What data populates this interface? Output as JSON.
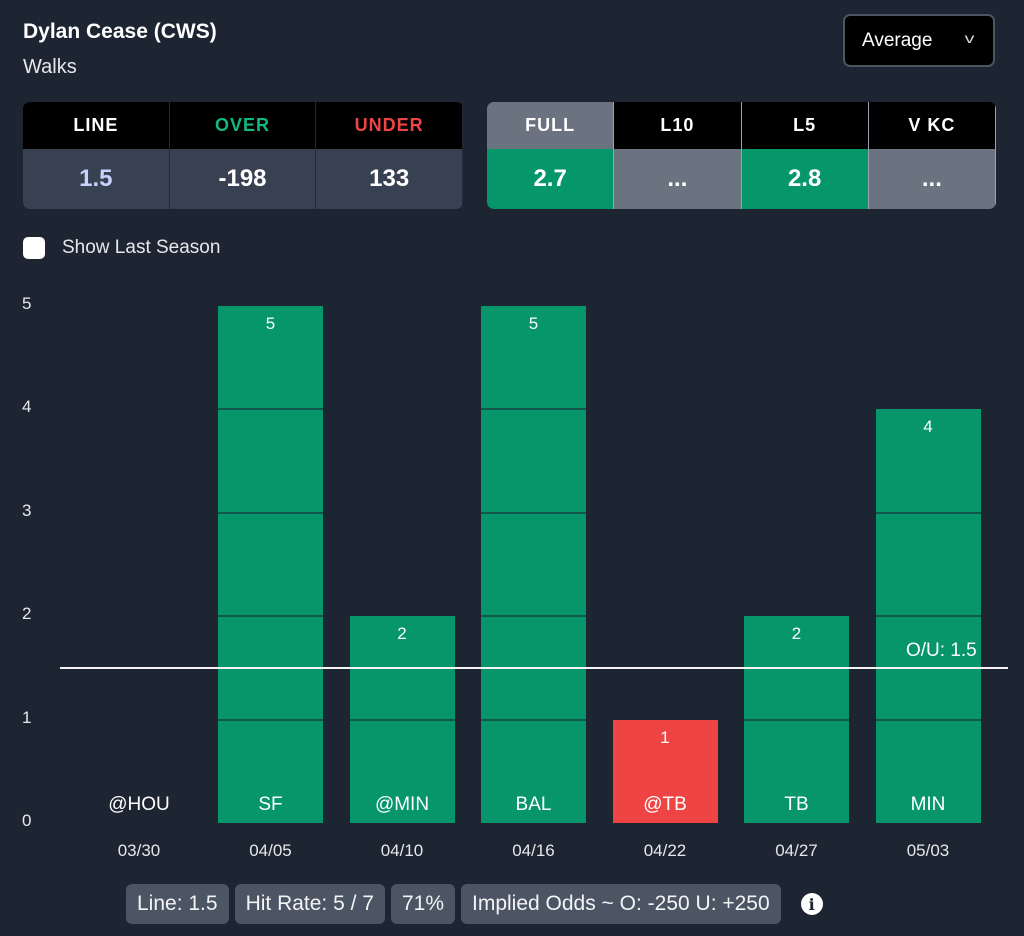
{
  "header": {
    "title": "Dylan Cease (CWS)",
    "subtitle": "Walks",
    "dropdown": "Average"
  },
  "odds": {
    "headers": [
      "LINE",
      "OVER",
      "UNDER"
    ],
    "values": [
      "1.5",
      "-198",
      "133"
    ],
    "header_colors": [
      "#ffffff",
      "#10b981",
      "#ef4444"
    ],
    "value_colors": [
      "#c7d2fe",
      "#ffffff",
      "#ffffff"
    ]
  },
  "splits": {
    "headers": [
      "FULL",
      "L10",
      "L5",
      "V KC"
    ],
    "values": [
      "2.7",
      "...",
      "2.8",
      "..."
    ],
    "header_bg": [
      "#6b7280",
      "#000000",
      "#000000",
      "#000000"
    ],
    "value_bg": [
      "#059669",
      "#6b7280",
      "#059669",
      "#6b7280"
    ]
  },
  "show_last_season": "Show Last Season",
  "chart_data": {
    "type": "bar",
    "categories": [
      "03/30",
      "04/05",
      "04/10",
      "04/16",
      "04/22",
      "04/27",
      "05/03"
    ],
    "opponents": [
      "@HOU",
      "SF",
      "@MIN",
      "BAL",
      "@TB",
      "TB",
      "MIN"
    ],
    "values": [
      0,
      5,
      2,
      5,
      1,
      2,
      4
    ],
    "ylim": [
      0,
      5
    ],
    "yticks": [
      "0",
      "1",
      "2",
      "3",
      "4",
      "5"
    ],
    "line": 1.5,
    "line_label": "O/U: 1.5",
    "colors": {
      "over": "#069669",
      "under": "#ef4444"
    }
  },
  "footer": {
    "line": "Line: 1.5",
    "hit_rate": "Hit Rate: 5 / 7",
    "pct": "71%",
    "implied": "Implied Odds ~ O: -250 U: +250"
  }
}
